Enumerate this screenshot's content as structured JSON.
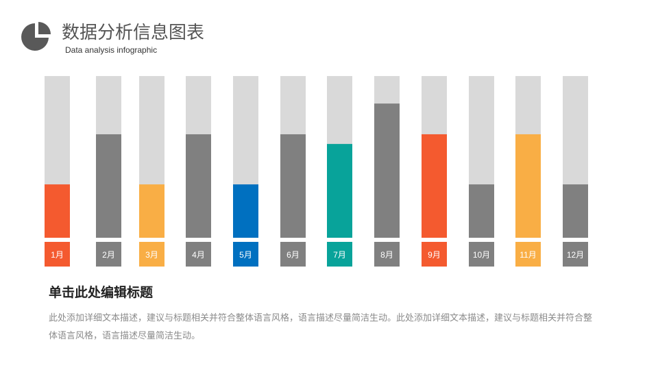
{
  "header": {
    "title": "数据分析信息图表",
    "subtitle": "Data analysis infographic"
  },
  "chart_data": {
    "type": "bar",
    "categories": [
      "1月",
      "2月",
      "3月",
      "4月",
      "5月",
      "6月",
      "7月",
      "8月",
      "9月",
      "10月",
      "11月",
      "12月"
    ],
    "values": [
      33,
      64,
      33,
      64,
      33,
      64,
      58,
      83,
      64,
      33,
      64,
      33
    ],
    "ylim": [
      0,
      100
    ],
    "colors": [
      "#f45a2f",
      "#808080",
      "#f9ae45",
      "#808080",
      "#0070c0",
      "#808080",
      "#08a39a",
      "#808080",
      "#f45a2f",
      "#808080",
      "#f9ae45",
      "#808080"
    ],
    "track_color": "#d9d9d9",
    "title": "",
    "xlabel": "",
    "ylabel": ""
  },
  "content": {
    "heading": "单击此处编辑标题",
    "description": "此处添加详细文本描述，建议与标题相关并符合整体语言风格，语言描述尽量简洁生动。此处添加详细文本描述，建议与标题相关并符合整体语言风格，语言描述尽量简洁生动。"
  }
}
